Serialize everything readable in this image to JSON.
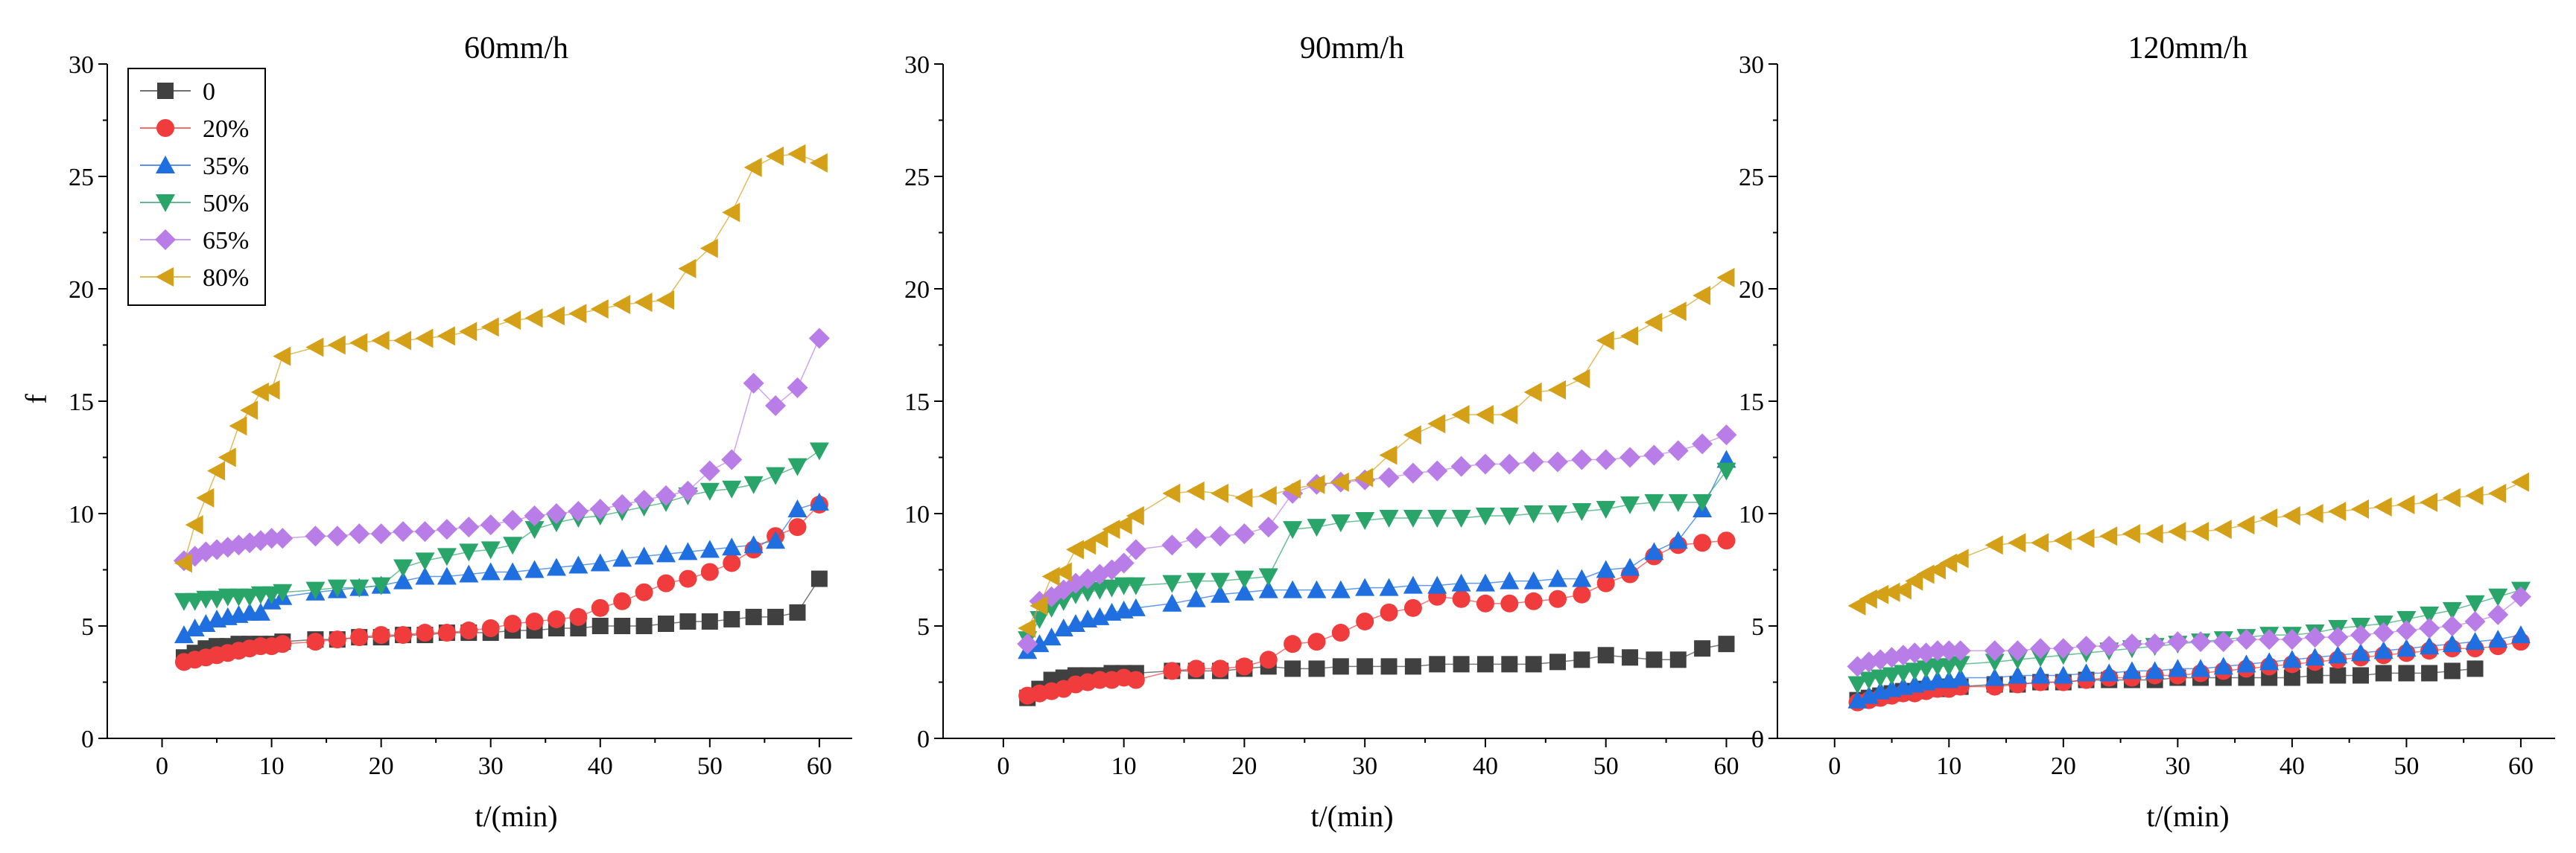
{
  "chart_data": {
    "type": "line",
    "shared": {
      "xlabel": "t/(min)",
      "ylabel": "f",
      "xlim": [
        -5,
        63
      ],
      "ylim": [
        0,
        30
      ],
      "xticks": [
        0,
        10,
        20,
        30,
        40,
        50,
        60
      ],
      "yticks": [
        0,
        5,
        10,
        15,
        20,
        25,
        30
      ],
      "x": [
        2,
        3,
        4,
        5,
        6,
        7,
        8,
        9,
        10,
        11,
        14,
        16,
        18,
        20,
        22,
        24,
        26,
        28,
        30,
        32,
        34,
        36,
        38,
        40,
        42,
        44,
        46,
        48,
        50,
        52,
        54,
        56,
        58,
        60
      ]
    },
    "legend": {
      "placement": "top-left",
      "entries": [
        {
          "name": "0",
          "color": "#404040",
          "marker": "square"
        },
        {
          "name": "20%",
          "color": "#f03c3c",
          "marker": "circle"
        },
        {
          "name": "35%",
          "color": "#1f6fe0",
          "marker": "triangle-up"
        },
        {
          "name": "50%",
          "color": "#2aa56a",
          "marker": "triangle-down"
        },
        {
          "name": "65%",
          "color": "#b97de8",
          "marker": "diamond"
        },
        {
          "name": "80%",
          "color": "#d4a017",
          "marker": "triangle-left"
        }
      ]
    },
    "panels": [
      {
        "title": "60mm/h",
        "series": [
          {
            "name": "0",
            "values": [
              3.6,
              3.8,
              4.0,
              4.1,
              4.1,
              4.2,
              4.2,
              4.2,
              4.2,
              4.3,
              4.4,
              4.4,
              4.5,
              4.5,
              4.6,
              4.6,
              4.7,
              4.7,
              4.7,
              4.8,
              4.8,
              4.9,
              4.9,
              5.0,
              5.0,
              5.0,
              5.1,
              5.2,
              5.2,
              5.3,
              5.4,
              5.4,
              5.6,
              7.1
            ]
          },
          {
            "name": "20%",
            "values": [
              3.4,
              3.5,
              3.6,
              3.7,
              3.8,
              3.9,
              4.0,
              4.1,
              4.1,
              4.2,
              4.3,
              4.4,
              4.5,
              4.6,
              4.6,
              4.7,
              4.7,
              4.8,
              4.9,
              5.1,
              5.2,
              5.3,
              5.4,
              5.8,
              6.1,
              6.5,
              6.9,
              7.1,
              7.4,
              7.8,
              8.4,
              9.0,
              9.4,
              10.4
            ]
          },
          {
            "name": "35%",
            "values": [
              4.6,
              4.9,
              5.1,
              5.3,
              5.4,
              5.5,
              5.6,
              5.6,
              6.1,
              6.3,
              6.5,
              6.6,
              6.7,
              6.8,
              7.0,
              7.2,
              7.2,
              7.3,
              7.4,
              7.4,
              7.5,
              7.6,
              7.7,
              7.8,
              8.0,
              8.1,
              8.2,
              8.3,
              8.4,
              8.5,
              8.6,
              8.8,
              10.2,
              10.5
            ]
          },
          {
            "name": "50%",
            "values": [
              6.1,
              6.1,
              6.2,
              6.2,
              6.3,
              6.3,
              6.3,
              6.4,
              6.4,
              6.5,
              6.6,
              6.7,
              6.7,
              6.8,
              7.6,
              7.9,
              8.1,
              8.3,
              8.4,
              8.6,
              9.3,
              9.6,
              9.8,
              9.9,
              10.1,
              10.3,
              10.5,
              10.8,
              11.0,
              11.1,
              11.3,
              11.7,
              12.1,
              12.8
            ]
          },
          {
            "name": "65%",
            "values": [
              7.9,
              8.1,
              8.3,
              8.4,
              8.5,
              8.6,
              8.7,
              8.8,
              8.9,
              8.9,
              9.0,
              9.0,
              9.1,
              9.1,
              9.2,
              9.2,
              9.3,
              9.4,
              9.5,
              9.7,
              9.9,
              10.0,
              10.1,
              10.2,
              10.4,
              10.6,
              10.8,
              11.0,
              11.9,
              12.4,
              15.8,
              14.8,
              15.6,
              17.8
            ]
          },
          {
            "name": "80%",
            "values": [
              7.8,
              9.5,
              10.7,
              11.9,
              12.5,
              13.9,
              14.6,
              15.4,
              15.5,
              17.0,
              17.4,
              17.5,
              17.6,
              17.7,
              17.7,
              17.8,
              17.9,
              18.1,
              18.3,
              18.6,
              18.7,
              18.8,
              18.9,
              19.1,
              19.3,
              19.4,
              19.5,
              20.9,
              21.8,
              23.4,
              25.4,
              25.9,
              26.0,
              25.6
            ]
          }
        ]
      },
      {
        "title": "90mm/h",
        "series": [
          {
            "name": "0",
            "values": [
              1.8,
              2.2,
              2.6,
              2.7,
              2.8,
              2.8,
              2.8,
              2.9,
              2.9,
              2.9,
              3.0,
              3.0,
              3.0,
              3.1,
              3.2,
              3.1,
              3.1,
              3.2,
              3.2,
              3.2,
              3.2,
              3.3,
              3.3,
              3.3,
              3.3,
              3.3,
              3.4,
              3.5,
              3.7,
              3.6,
              3.5,
              3.5,
              4.0,
              4.2
            ]
          },
          {
            "name": "20%",
            "values": [
              1.9,
              2.0,
              2.1,
              2.2,
              2.4,
              2.5,
              2.6,
              2.6,
              2.7,
              2.6,
              3.0,
              3.1,
              3.1,
              3.2,
              3.5,
              4.2,
              4.3,
              4.7,
              5.2,
              5.6,
              5.8,
              6.3,
              6.2,
              6.0,
              6.0,
              6.1,
              6.2,
              6.4,
              6.9,
              7.3,
              8.1,
              8.6,
              8.7,
              8.8
            ]
          },
          {
            "name": "35%",
            "values": [
              3.9,
              4.2,
              4.5,
              4.9,
              5.1,
              5.3,
              5.4,
              5.6,
              5.7,
              5.8,
              6.0,
              6.2,
              6.4,
              6.5,
              6.6,
              6.6,
              6.6,
              6.6,
              6.7,
              6.7,
              6.8,
              6.8,
              6.9,
              6.9,
              7.0,
              7.0,
              7.1,
              7.1,
              7.5,
              7.6,
              8.3,
              8.8,
              10.2,
              12.4
            ]
          },
          {
            "name": "50%",
            "values": [
              4.4,
              5.3,
              5.8,
              6.1,
              6.4,
              6.5,
              6.6,
              6.7,
              6.8,
              6.8,
              6.9,
              7.0,
              7.0,
              7.1,
              7.2,
              9.3,
              9.4,
              9.6,
              9.7,
              9.8,
              9.8,
              9.8,
              9.8,
              9.9,
              9.9,
              10.0,
              10.0,
              10.1,
              10.2,
              10.4,
              10.5,
              10.5,
              10.5,
              11.9
            ]
          },
          {
            "name": "65%",
            "values": [
              4.2,
              6.1,
              6.3,
              6.6,
              6.9,
              7.1,
              7.3,
              7.5,
              7.8,
              8.4,
              8.6,
              8.9,
              9.0,
              9.1,
              9.4,
              10.9,
              11.3,
              11.4,
              11.5,
              11.6,
              11.8,
              11.9,
              12.1,
              12.2,
              12.2,
              12.3,
              12.3,
              12.4,
              12.4,
              12.5,
              12.6,
              12.8,
              13.1,
              13.5
            ]
          },
          {
            "name": "80%",
            "values": [
              4.9,
              5.9,
              7.2,
              7.4,
              8.4,
              8.6,
              8.9,
              9.3,
              9.5,
              9.9,
              10.9,
              11.0,
              10.9,
              10.7,
              10.8,
              11.1,
              11.3,
              11.4,
              11.6,
              12.6,
              13.5,
              14.0,
              14.4,
              14.4,
              14.4,
              15.4,
              15.5,
              16.0,
              17.7,
              17.9,
              18.5,
              19.0,
              19.7,
              20.5
            ]
          }
        ]
      },
      {
        "title": "120mm/h",
        "series": [
          {
            "name": "0",
            "values": [
              1.7,
              1.8,
              1.9,
              2.0,
              2.1,
              2.1,
              2.2,
              2.2,
              2.3,
              2.3,
              2.4,
              2.4,
              2.5,
              2.5,
              2.6,
              2.6,
              2.6,
              2.6,
              2.7,
              2.7,
              2.7,
              2.7,
              2.7,
              2.7,
              2.8,
              2.8,
              2.8,
              2.9,
              2.9,
              2.9,
              3.0,
              3.1,
              null,
              null
            ]
          },
          {
            "name": "20%",
            "values": [
              1.6,
              1.7,
              1.8,
              1.9,
              2.0,
              2.0,
              2.1,
              2.2,
              2.2,
              2.3,
              2.3,
              2.4,
              2.5,
              2.5,
              2.6,
              2.7,
              2.7,
              2.8,
              2.8,
              2.9,
              3.0,
              3.1,
              3.2,
              3.3,
              3.4,
              3.5,
              3.6,
              3.7,
              3.8,
              3.9,
              4.0,
              4.0,
              4.1,
              4.3
            ]
          },
          {
            "name": "35%",
            "values": [
              1.7,
              1.9,
              2.1,
              2.2,
              2.3,
              2.4,
              2.5,
              2.6,
              2.6,
              2.7,
              2.7,
              2.8,
              2.8,
              2.8,
              2.9,
              2.9,
              3.0,
              3.0,
              3.1,
              3.1,
              3.2,
              3.3,
              3.4,
              3.5,
              3.6,
              3.7,
              3.8,
              3.9,
              4.0,
              4.1,
              4.2,
              4.3,
              4.4,
              4.6
            ]
          },
          {
            "name": "50%",
            "values": [
              2.4,
              2.6,
              2.7,
              2.8,
              2.9,
              3.0,
              3.1,
              3.2,
              3.2,
              3.3,
              3.4,
              3.5,
              3.6,
              3.7,
              3.8,
              3.9,
              4.0,
              4.1,
              4.2,
              4.3,
              4.4,
              4.5,
              4.6,
              4.6,
              4.7,
              4.9,
              5.0,
              5.1,
              5.3,
              5.5,
              5.7,
              6.0,
              6.3,
              6.6
            ]
          },
          {
            "name": "65%",
            "values": [
              3.2,
              3.4,
              3.5,
              3.6,
              3.7,
              3.8,
              3.8,
              3.9,
              3.9,
              3.9,
              3.9,
              3.9,
              4.0,
              4.0,
              4.1,
              4.1,
              4.2,
              4.2,
              4.3,
              4.3,
              4.3,
              4.4,
              4.4,
              4.4,
              4.5,
              4.5,
              4.6,
              4.7,
              4.8,
              4.9,
              5.0,
              5.2,
              5.5,
              6.3
            ]
          },
          {
            "name": "80%",
            "values": [
              5.9,
              6.2,
              6.4,
              6.5,
              6.6,
              7.0,
              7.3,
              7.5,
              7.8,
              8.0,
              8.6,
              8.7,
              8.7,
              8.8,
              8.9,
              9.0,
              9.1,
              9.1,
              9.2,
              9.2,
              9.3,
              9.5,
              9.8,
              9.9,
              10.0,
              10.1,
              10.2,
              10.3,
              10.4,
              10.5,
              10.7,
              10.8,
              10.9,
              11.4
            ]
          }
        ]
      }
    ]
  }
}
